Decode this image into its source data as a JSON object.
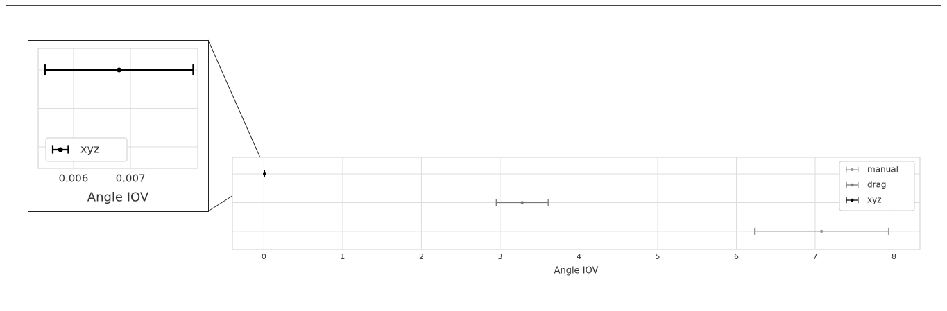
{
  "chart_data": [
    {
      "type": "errorbar",
      "xlabel": "Angle IOV",
      "categories": [
        null,
        null,
        null
      ],
      "series": [
        {
          "name": "manual",
          "color": "#999999",
          "values": [
            null,
            null,
            7.08
          ],
          "errors": [
            null,
            null,
            0.85
          ]
        },
        {
          "name": "drag",
          "color": "#777777",
          "values": [
            null,
            3.28,
            null
          ],
          "errors": [
            null,
            0.33,
            null
          ]
        },
        {
          "name": "xyz",
          "color": "#000000",
          "values": [
            0.0068,
            null,
            null
          ],
          "errors": [
            0.0013,
            null,
            null
          ]
        }
      ],
      "xlim": [
        -0.4,
        8.33
      ],
      "xticks": [
        0,
        1,
        2,
        3,
        4,
        5,
        6,
        7,
        8
      ],
      "ylim": [
        2.63,
        -0.58
      ],
      "grid": true,
      "legend": "upper right"
    },
    {
      "type": "errorbar",
      "xlabel": "Angle IOV",
      "categories": [
        null,
        null,
        null
      ],
      "series": [
        {
          "name": "xyz",
          "color": "#000000",
          "values": [
            0.0068,
            null,
            null
          ],
          "errors": [
            0.0013,
            null,
            null
          ]
        }
      ],
      "xlim": [
        0.00538,
        0.00818
      ],
      "xticks": [
        0.006,
        0.007
      ],
      "ylim": [
        2.56,
        -0.56
      ],
      "grid": true,
      "legend": "lower left"
    }
  ]
}
